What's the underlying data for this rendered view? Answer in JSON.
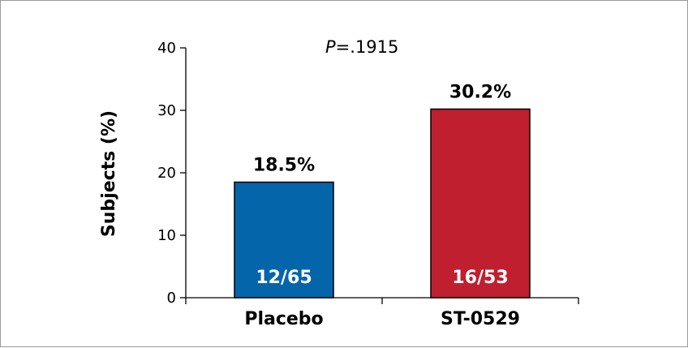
{
  "chart_data": {
    "type": "bar",
    "categories": [
      "Placebo",
      "ST-0529"
    ],
    "values": [
      18.5,
      30.2
    ],
    "value_labels": [
      "18.5%",
      "30.2%"
    ],
    "count_labels": [
      "12/65",
      "16/53"
    ],
    "colors": [
      "#0565ab",
      "#bf1f2f"
    ],
    "ylabel": "Subjects (%)",
    "ylim": [
      0,
      40
    ],
    "yticks": [
      0,
      10,
      20,
      30,
      40
    ],
    "ytick_labels": [
      "0",
      "10",
      "20",
      "30",
      "40"
    ],
    "grid": false,
    "annotation": {
      "italic": "P",
      "text": "=.1915"
    }
  }
}
